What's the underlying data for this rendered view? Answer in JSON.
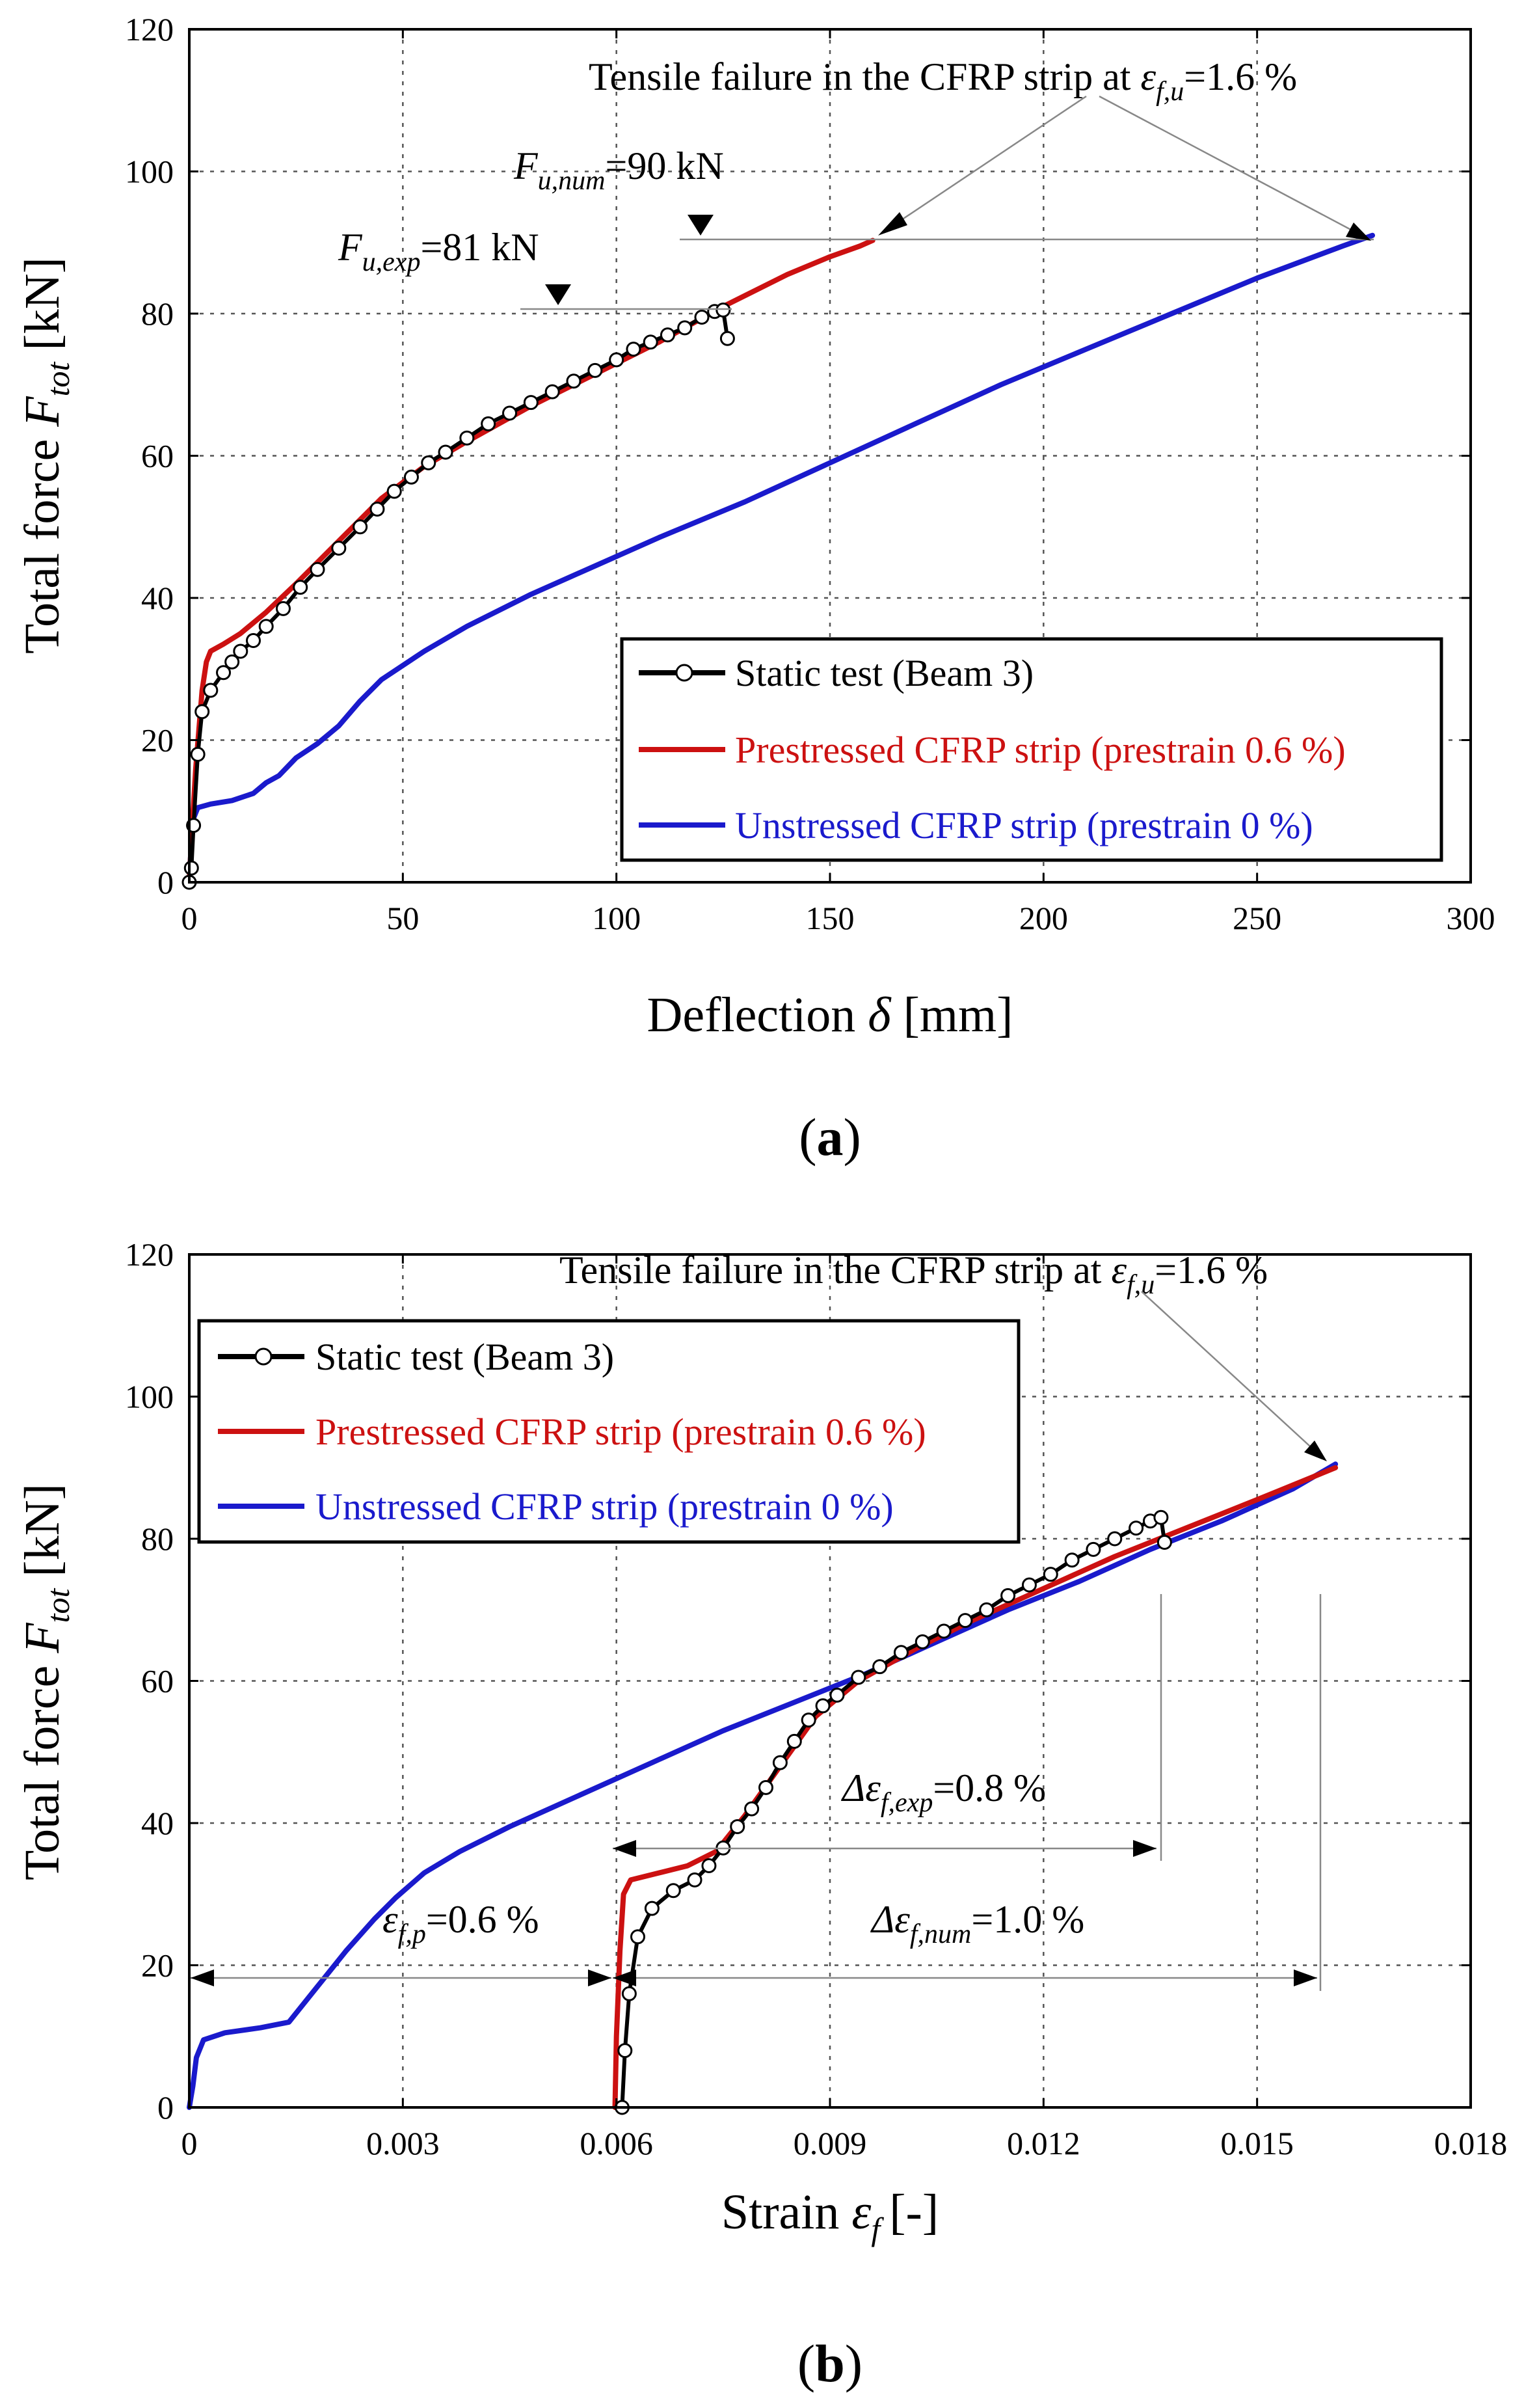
{
  "colors": {
    "static": "#000000",
    "prestressed": "#cc1111",
    "unstressed": "#1a1acc",
    "grid": "#555555",
    "arrow": "#888888"
  },
  "legend": {
    "static": "Static test (Beam 3)",
    "prestressed": "Prestressed CFRP strip (prestrain 0.6 %)",
    "unstressed": "Unstressed CFRP strip (prestrain 0 %)"
  },
  "chart_data": [
    {
      "type": "line",
      "caption": "a",
      "xlabel": "Deflection",
      "xlabel_symbol": "δ",
      "xlabel_unit": "[mm]",
      "ylabel": "Total force",
      "ylabel_symbol": "F",
      "ylabel_sub": "tot",
      "ylabel_unit": "[kN]",
      "xlim": [
        0,
        300
      ],
      "ylim": [
        0,
        120
      ],
      "xticks": [
        0,
        50,
        100,
        150,
        200,
        250,
        300
      ],
      "xtick_labels": [
        "0",
        "50",
        "100",
        "150",
        "200",
        "250",
        "300"
      ],
      "yticks": [
        0,
        20,
        40,
        60,
        80,
        100,
        120
      ],
      "ytick_labels": [
        "0",
        "20",
        "40",
        "60",
        "80",
        "100",
        "120"
      ],
      "grid": true,
      "legend_position": "bottom-right",
      "annotations": {
        "failure": {
          "pre": "Tensile failure in the CFRP strip at ",
          "sym": "ε",
          "sub": "f,u",
          "post": "=1.6 %"
        },
        "fu_num": {
          "sym": "F",
          "sub": "u,num",
          "post": "=90 kN"
        },
        "fu_exp": {
          "sym": "F",
          "sub": "u,exp",
          "post": "=81 kN"
        }
      },
      "series": [
        {
          "name": "Static test (Beam 3)",
          "key": "static",
          "markers": true,
          "points": [
            [
              0,
              0
            ],
            [
              0.5,
              2
            ],
            [
              1,
              8
            ],
            [
              2,
              18
            ],
            [
              3,
              24
            ],
            [
              5,
              27
            ],
            [
              8,
              29.5
            ],
            [
              10,
              31
            ],
            [
              12,
              32.5
            ],
            [
              15,
              34
            ],
            [
              18,
              36
            ],
            [
              22,
              38.5
            ],
            [
              26,
              41.5
            ],
            [
              30,
              44
            ],
            [
              35,
              47
            ],
            [
              40,
              50
            ],
            [
              44,
              52.5
            ],
            [
              48,
              55
            ],
            [
              52,
              57
            ],
            [
              56,
              59
            ],
            [
              60,
              60.5
            ],
            [
              65,
              62.5
            ],
            [
              70,
              64.5
            ],
            [
              75,
              66
            ],
            [
              80,
              67.5
            ],
            [
              85,
              69
            ],
            [
              90,
              70.5
            ],
            [
              95,
              72
            ],
            [
              100,
              73.5
            ],
            [
              104,
              75
            ],
            [
              108,
              76
            ],
            [
              112,
              77
            ],
            [
              116,
              78
            ],
            [
              120,
              79.5
            ],
            [
              123,
              80.3
            ],
            [
              125,
              80.5
            ],
            [
              126,
              76.5
            ]
          ]
        },
        {
          "name": "Prestressed CFRP strip (prestrain 0.6 %)",
          "key": "prestressed",
          "markers": false,
          "points": [
            [
              0,
              0
            ],
            [
              0.5,
              6
            ],
            [
              1.5,
              16
            ],
            [
              3,
              27
            ],
            [
              4,
              31
            ],
            [
              5,
              32.5
            ],
            [
              8,
              33.5
            ],
            [
              12,
              35
            ],
            [
              18,
              38
            ],
            [
              25,
              42
            ],
            [
              35,
              48
            ],
            [
              45,
              54
            ],
            [
              55,
              58.5
            ],
            [
              65,
              62
            ],
            [
              80,
              67
            ],
            [
              95,
              71.5
            ],
            [
              110,
              76
            ],
            [
              125,
              81
            ],
            [
              140,
              85.5
            ],
            [
              150,
              88
            ],
            [
              157,
              89.5
            ],
            [
              160,
              90.3
            ]
          ]
        },
        {
          "name": "Unstressed CFRP strip (prestrain 0 %)",
          "key": "unstressed",
          "markers": false,
          "points": [
            [
              0,
              0
            ],
            [
              0.5,
              6
            ],
            [
              1,
              9
            ],
            [
              2,
              10.5
            ],
            [
              5,
              11
            ],
            [
              10,
              11.5
            ],
            [
              15,
              12.5
            ],
            [
              18,
              14
            ],
            [
              21,
              15
            ],
            [
              25,
              17.5
            ],
            [
              30,
              19.5
            ],
            [
              35,
              22
            ],
            [
              40,
              25.5
            ],
            [
              45,
              28.5
            ],
            [
              55,
              32.5
            ],
            [
              65,
              36
            ],
            [
              80,
              40.5
            ],
            [
              95,
              44.5
            ],
            [
              110,
              48.5
            ],
            [
              130,
              53.5
            ],
            [
              150,
              59
            ],
            [
              170,
              64.5
            ],
            [
              190,
              70
            ],
            [
              210,
              75
            ],
            [
              230,
              80
            ],
            [
              250,
              85
            ],
            [
              270,
              89.5
            ],
            [
              277,
              91
            ]
          ]
        }
      ]
    },
    {
      "type": "line",
      "caption": "b",
      "xlabel": "Strain",
      "xlabel_symbol": "ε",
      "xlabel_sub": "f",
      "xlabel_unit": "[-]",
      "ylabel": "Total force",
      "ylabel_symbol": "F",
      "ylabel_sub": "tot",
      "ylabel_unit": "[kN]",
      "xlim": [
        0,
        0.018
      ],
      "ylim": [
        0,
        120
      ],
      "xticks": [
        0,
        0.003,
        0.006,
        0.009,
        0.012,
        0.015,
        0.018
      ],
      "xtick_labels": [
        "0",
        "0.003",
        "0.006",
        "0.009",
        "0.012",
        "0.015",
        "0.018"
      ],
      "yticks": [
        0,
        20,
        40,
        60,
        80,
        100,
        120
      ],
      "ytick_labels": [
        "0",
        "20",
        "40",
        "60",
        "80",
        "100",
        "120"
      ],
      "grid": true,
      "legend_position": "top-left",
      "annotations": {
        "failure": {
          "pre": "Tensile failure in the CFRP strip at ",
          "sym": "ε",
          "sub": "f,u",
          "post": "=1.6 %"
        },
        "d_exp": {
          "pre": "Δ",
          "sym": "ε",
          "sub": "f,exp",
          "post": "=0.8 %"
        },
        "d_num": {
          "pre": "Δ",
          "sym": "ε",
          "sub": "f,num",
          "post": "=1.0 %"
        },
        "prestrain": {
          "sym": "ε",
          "sub": "f,p",
          "post": "=0.6 %"
        }
      },
      "series": [
        {
          "name": "Static test (Beam 3)",
          "key": "static",
          "markers": true,
          "points": [
            [
              0.00608,
              0
            ],
            [
              0.00612,
              8
            ],
            [
              0.00618,
              16
            ],
            [
              0.0063,
              24
            ],
            [
              0.0065,
              28
            ],
            [
              0.0068,
              30.5
            ],
            [
              0.0071,
              32
            ],
            [
              0.0073,
              34
            ],
            [
              0.0075,
              36.5
            ],
            [
              0.0077,
              39.5
            ],
            [
              0.0079,
              42
            ],
            [
              0.0081,
              45
            ],
            [
              0.0083,
              48.5
            ],
            [
              0.0085,
              51.5
            ],
            [
              0.0087,
              54.5
            ],
            [
              0.0089,
              56.5
            ],
            [
              0.0091,
              58
            ],
            [
              0.0094,
              60.5
            ],
            [
              0.0097,
              62
            ],
            [
              0.01,
              64
            ],
            [
              0.0103,
              65.5
            ],
            [
              0.0106,
              67
            ],
            [
              0.0109,
              68.5
            ],
            [
              0.0112,
              70
            ],
            [
              0.0115,
              72
            ],
            [
              0.0118,
              73.5
            ],
            [
              0.0121,
              75
            ],
            [
              0.0124,
              77
            ],
            [
              0.0127,
              78.5
            ],
            [
              0.013,
              80
            ],
            [
              0.0133,
              81.5
            ],
            [
              0.0135,
              82.5
            ],
            [
              0.01365,
              83
            ],
            [
              0.0137,
              79.5
            ]
          ]
        },
        {
          "name": "Prestressed CFRP strip (prestrain 0.6 %)",
          "key": "prestressed",
          "markers": false,
          "points": [
            [
              0.00598,
              0
            ],
            [
              0.006,
              10
            ],
            [
              0.00605,
              22
            ],
            [
              0.0061,
              30
            ],
            [
              0.0062,
              32
            ],
            [
              0.0066,
              33
            ],
            [
              0.007,
              34
            ],
            [
              0.0074,
              36
            ],
            [
              0.0078,
              41
            ],
            [
              0.0083,
              48
            ],
            [
              0.0088,
              55
            ],
            [
              0.0094,
              60
            ],
            [
              0.0102,
              64.5
            ],
            [
              0.011,
              68.5
            ],
            [
              0.012,
              73
            ],
            [
              0.013,
              77.5
            ],
            [
              0.014,
              81.5
            ],
            [
              0.015,
              85.5
            ],
            [
              0.0161,
              90
            ]
          ]
        },
        {
          "name": "Unstressed CFRP strip (prestrain 0 %)",
          "key": "unstressed",
          "markers": false,
          "points": [
            [
              0,
              0
            ],
            [
              5e-05,
              3
            ],
            [
              0.0001,
              7
            ],
            [
              0.0002,
              9.5
            ],
            [
              0.0005,
              10.5
            ],
            [
              0.001,
              11.2
            ],
            [
              0.0014,
              12
            ],
            [
              0.0018,
              17
            ],
            [
              0.0022,
              22
            ],
            [
              0.0026,
              26.5
            ],
            [
              0.0029,
              29.5
            ],
            [
              0.0033,
              33
            ],
            [
              0.0038,
              36
            ],
            [
              0.0045,
              39.5
            ],
            [
              0.0055,
              44
            ],
            [
              0.0065,
              48.5
            ],
            [
              0.0075,
              53
            ],
            [
              0.0085,
              57
            ],
            [
              0.0095,
              61
            ],
            [
              0.0105,
              65.5
            ],
            [
              0.0115,
              70
            ],
            [
              0.0125,
              74
            ],
            [
              0.0135,
              78.5
            ],
            [
              0.0145,
              82.5
            ],
            [
              0.0155,
              87
            ],
            [
              0.0161,
              90.5
            ]
          ]
        }
      ]
    }
  ]
}
